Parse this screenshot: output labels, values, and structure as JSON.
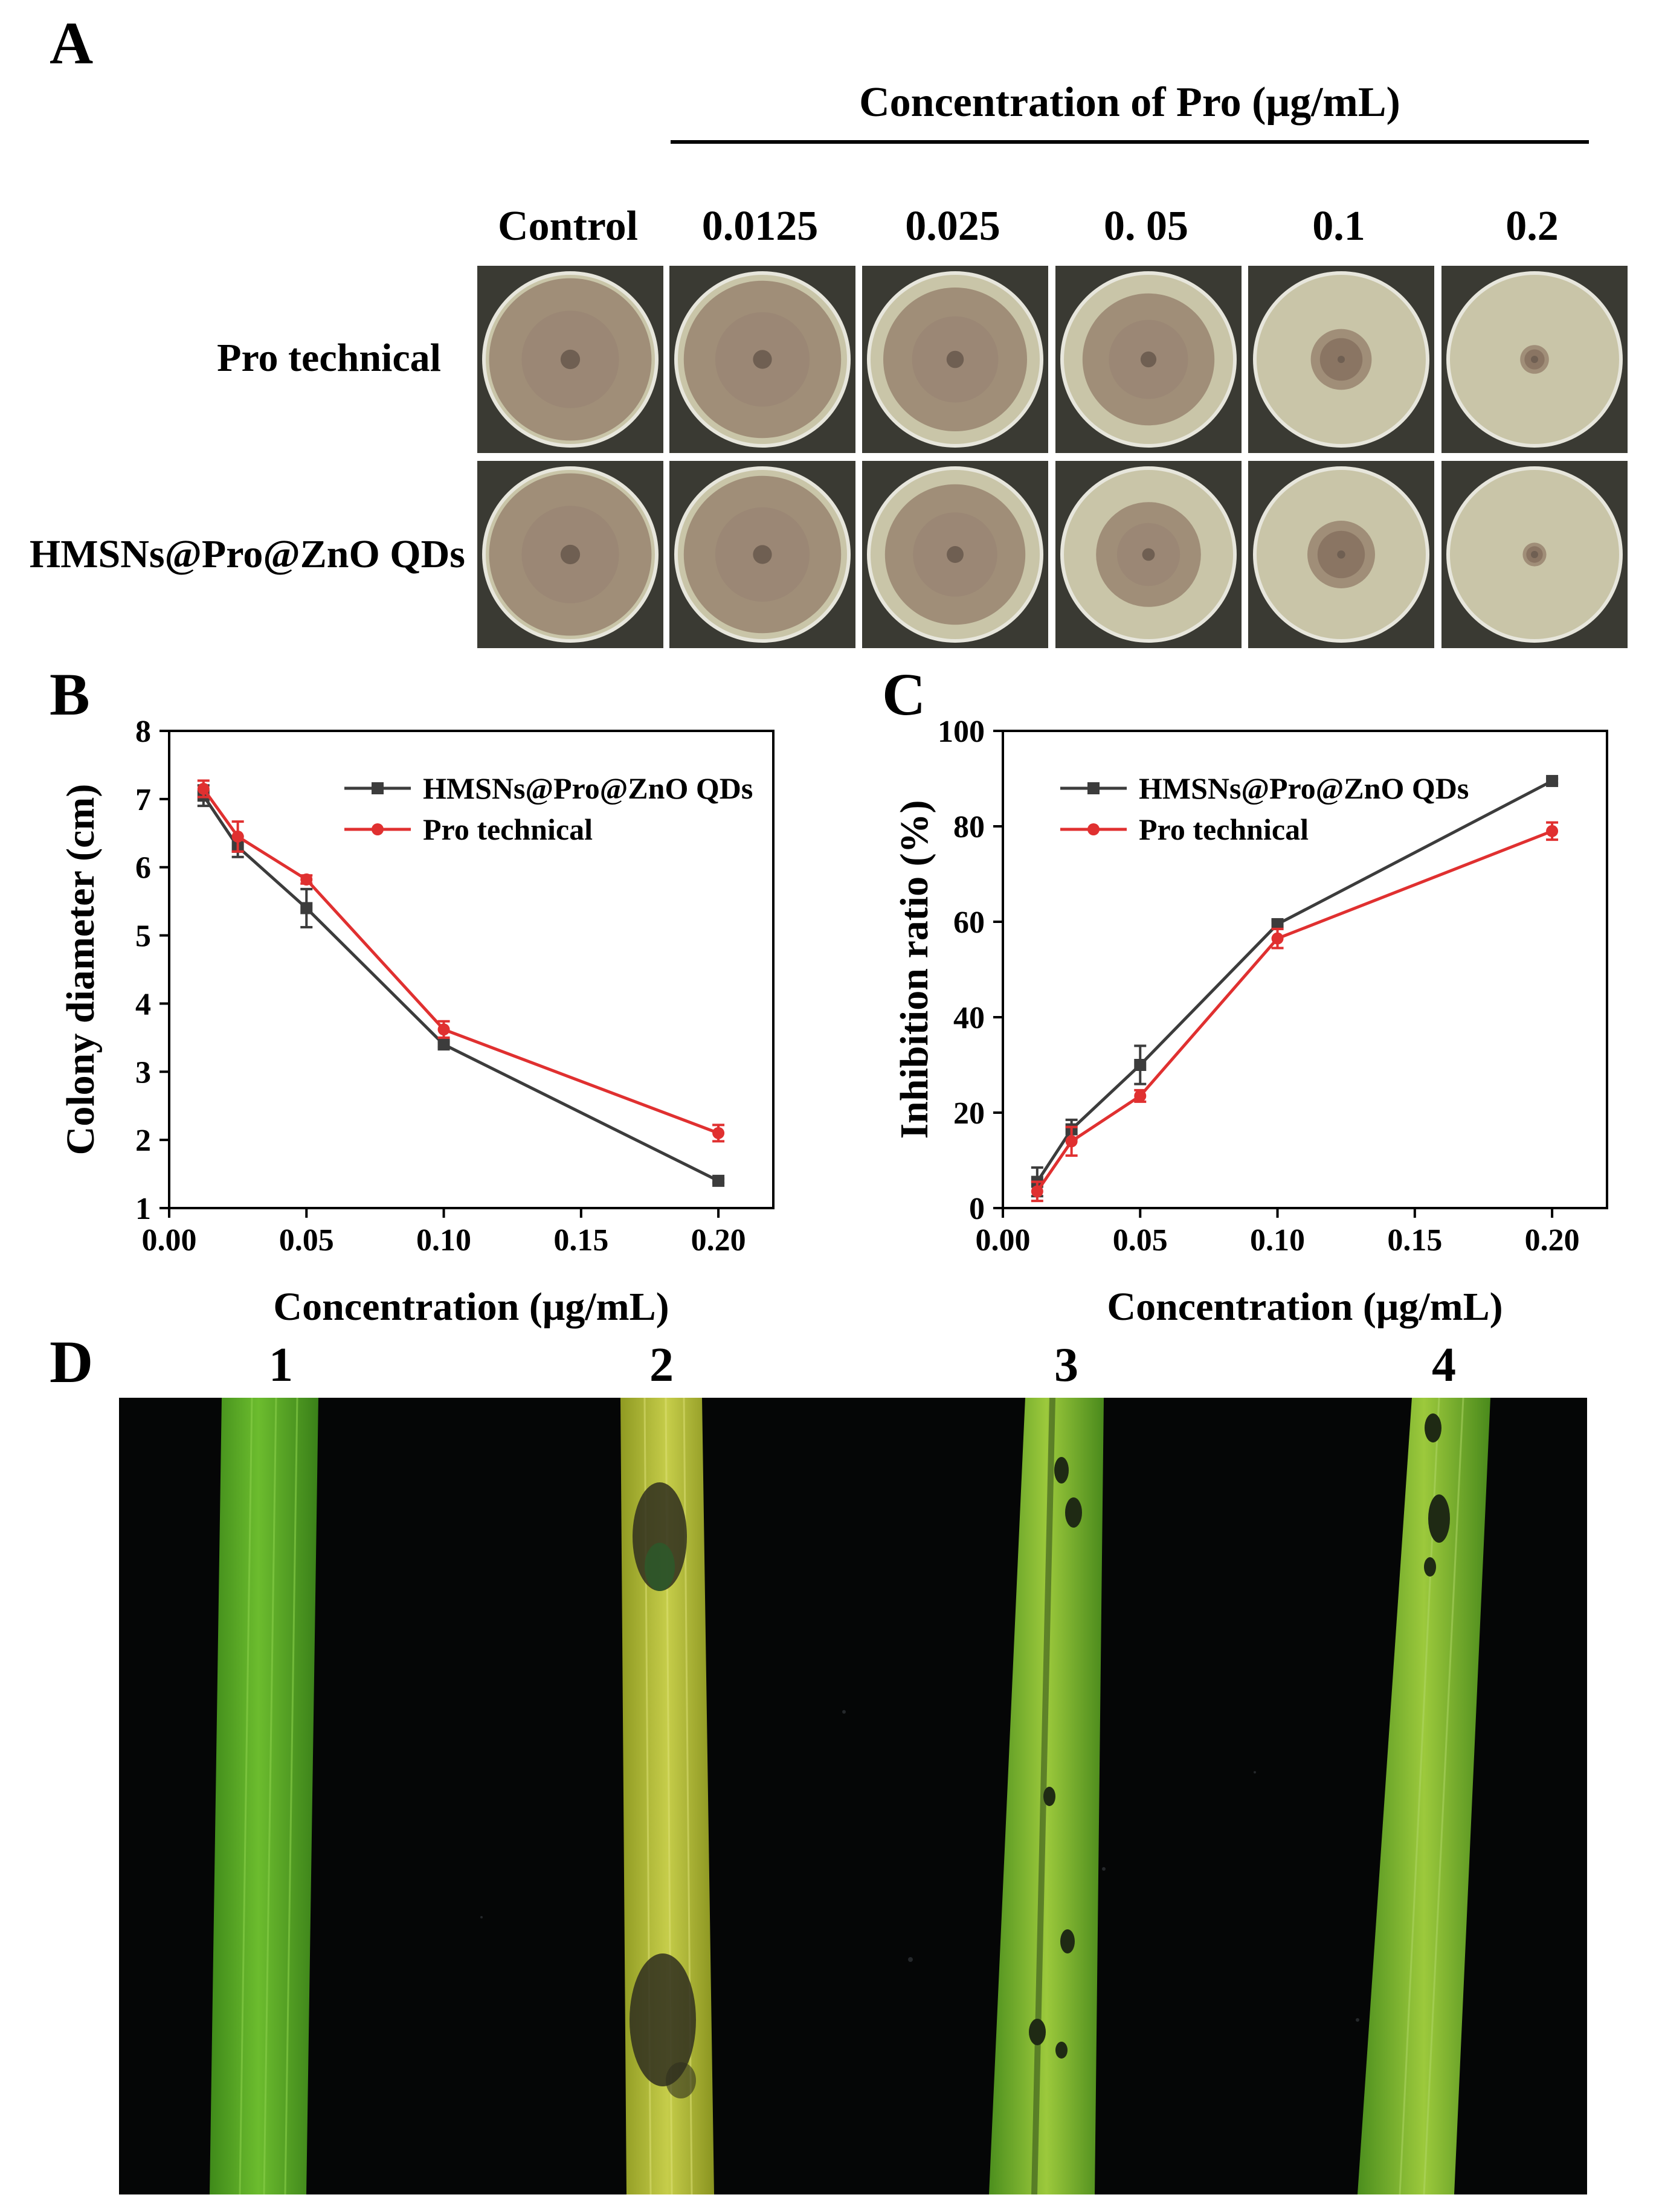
{
  "panel_a": {
    "letter": "A",
    "concentration_header": "Concentration of Pro (μg/mL)",
    "columns": [
      "Control",
      "0.0125",
      "0.025",
      "0. 05",
      "0.1",
      "0.2"
    ],
    "rows": [
      "Pro technical",
      "HMSNs@Pro@ZnO QDs"
    ],
    "colors": {
      "agar": "#c9c5a8",
      "mycelium": "#a08e78",
      "center": "#6f5f52",
      "tray": "#3a3a33"
    }
  },
  "panel_b": {
    "letter": "B"
  },
  "panel_c": {
    "letter": "C"
  },
  "panel_d": {
    "letter": "D",
    "leaf_labels": [
      "1",
      "2",
      "3",
      "4"
    ],
    "colors": {
      "healthy": "#5aa524",
      "yellowed": "#b7c03a",
      "lesion": "#2f2e1e",
      "background": "#050606"
    }
  },
  "chart_data": [
    {
      "type": "line",
      "panel": "B",
      "xlabel": "Concentration (μg/mL)",
      "ylabel": "Colony diameter (cm)",
      "xlim": [
        0.0,
        0.22
      ],
      "ylim": [
        1,
        8
      ],
      "xticks": [
        "0.00",
        "0.05",
        "0.10",
        "0.15",
        "0.20"
      ],
      "yticks": [
        "1",
        "2",
        "3",
        "4",
        "5",
        "6",
        "7",
        "8"
      ],
      "legend_position": "top-right",
      "series": [
        {
          "name": "HMSNs@Pro@ZnO QDs",
          "color": "#3c3c3c",
          "marker": "square",
          "x": [
            0.0125,
            0.025,
            0.05,
            0.1,
            0.2
          ],
          "y": [
            7.05,
            6.3,
            5.4,
            3.4,
            1.4
          ],
          "err": [
            0.15,
            0.15,
            0.28,
            0.04,
            0.03
          ]
        },
        {
          "name": "Pro technical",
          "color": "#e03030",
          "marker": "circle",
          "x": [
            0.0125,
            0.025,
            0.05,
            0.1,
            0.2
          ],
          "y": [
            7.15,
            6.45,
            5.82,
            3.62,
            2.1
          ],
          "err": [
            0.12,
            0.22,
            0.06,
            0.12,
            0.12
          ]
        }
      ]
    },
    {
      "type": "line",
      "panel": "C",
      "xlabel": "Concentration (μg/mL)",
      "ylabel": "Inhibition ratio (%)",
      "xlim": [
        0.0,
        0.22
      ],
      "ylim": [
        0,
        100
      ],
      "xticks": [
        "0.00",
        "0.05",
        "0.10",
        "0.15",
        "0.20"
      ],
      "yticks": [
        "0",
        "20",
        "40",
        "60",
        "80",
        "100"
      ],
      "legend_position": "top-left",
      "series": [
        {
          "name": "HMSNs@Pro@ZnO QDs",
          "color": "#3c3c3c",
          "marker": "square",
          "x": [
            0.0125,
            0.025,
            0.05,
            0.1,
            0.2
          ],
          "y": [
            5.5,
            16.5,
            30,
            59.5,
            89.5
          ],
          "err": [
            3,
            2,
            4,
            0.8,
            0.5
          ]
        },
        {
          "name": "Pro technical",
          "color": "#e03030",
          "marker": "circle",
          "x": [
            0.0125,
            0.025,
            0.05,
            0.1,
            0.2
          ],
          "y": [
            3.5,
            14,
            23.5,
            56.5,
            79
          ],
          "err": [
            2,
            3,
            1.2,
            2,
            1.8
          ]
        }
      ]
    }
  ]
}
